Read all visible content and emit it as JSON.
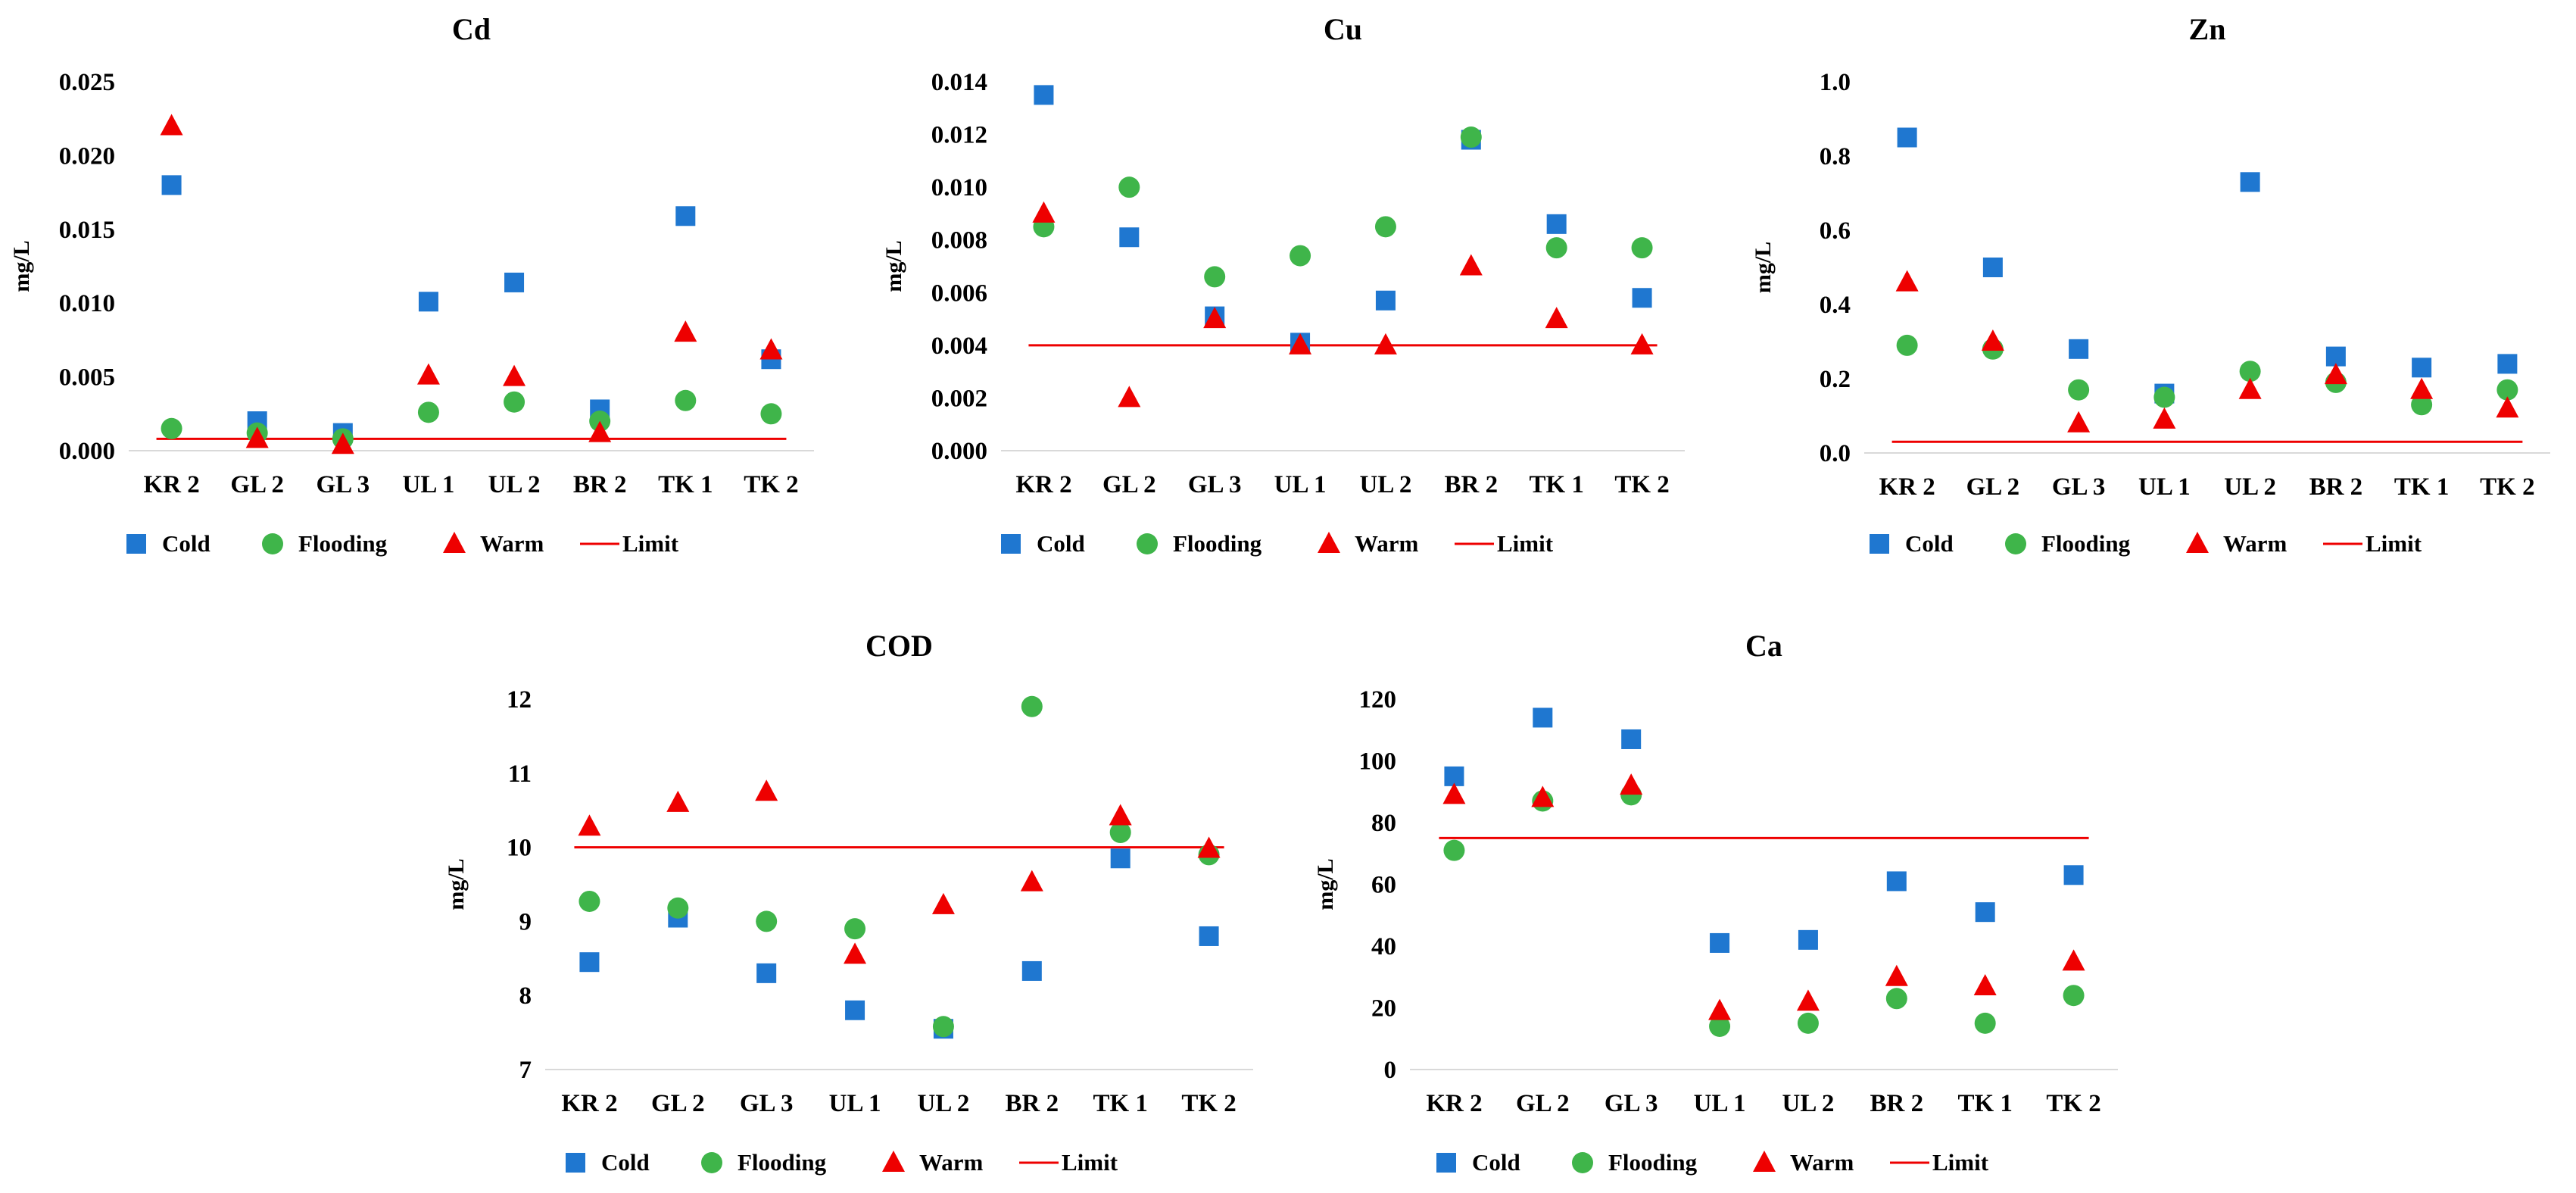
{
  "colors": {
    "cold": "#1f77d0",
    "flooding": "#3fb54a",
    "warm": "#ee0000",
    "limit": "#ee0000"
  },
  "legend": {
    "cold": "Cold",
    "flooding": "Flooding",
    "warm": "Warm",
    "limit": "Limit"
  },
  "chart_data": [
    {
      "type": "scatter",
      "title": "Cd",
      "xlabel": "",
      "ylabel": "mg/L",
      "categories": [
        "KR 2",
        "GL 2",
        "GL 3",
        "UL 1",
        "UL 2",
        "BR 2",
        "TK 1",
        "TK 2"
      ],
      "ylim": [
        0,
        0.025
      ],
      "yticks": [
        "0.000",
        "0.005",
        "0.010",
        "0.015",
        "0.020",
        "0.025"
      ],
      "limit": 0.0008,
      "series": [
        {
          "name": "Cold",
          "values": [
            0.018,
            0.002,
            0.0012,
            0.0101,
            0.0114,
            0.0028,
            0.0159,
            0.0062
          ]
        },
        {
          "name": "Flooding",
          "values": [
            0.0015,
            0.0012,
            0.0008,
            0.0026,
            0.0033,
            0.002,
            0.0034,
            0.0025
          ]
        },
        {
          "name": "Warm",
          "values": [
            0.022,
            0.0008,
            0.0004,
            0.0051,
            0.005,
            0.0012,
            0.008,
            0.0068
          ]
        }
      ],
      "legend_position": "bottom"
    },
    {
      "type": "scatter",
      "title": "Cu",
      "xlabel": "",
      "ylabel": "mg/L",
      "categories": [
        "KR 2",
        "GL 2",
        "GL 3",
        "UL 1",
        "UL 2",
        "BR 2",
        "TK 1",
        "TK 2"
      ],
      "ylim": [
        0,
        0.014
      ],
      "yticks": [
        "0.000",
        "0.002",
        "0.004",
        "0.006",
        "0.008",
        "0.010",
        "0.012",
        "0.014"
      ],
      "limit": 0.004,
      "series": [
        {
          "name": "Cold",
          "values": [
            0.0135,
            0.0081,
            0.0051,
            0.0041,
            0.0057,
            0.0118,
            0.0086,
            0.0058
          ]
        },
        {
          "name": "Flooding",
          "values": [
            0.0085,
            0.01,
            0.0066,
            0.0074,
            0.0085,
            0.0119,
            0.0077,
            0.0077
          ]
        },
        {
          "name": "Warm",
          "values": [
            0.009,
            0.002,
            0.005,
            0.004,
            0.004,
            0.007,
            0.005,
            0.004
          ]
        }
      ],
      "legend_position": "bottom"
    },
    {
      "type": "scatter",
      "title": "Zn",
      "xlabel": "",
      "ylabel": "mg/L",
      "categories": [
        "KR 2",
        "GL 2",
        "GL 3",
        "UL 1",
        "UL 2",
        "BR 2",
        "TK 1",
        "TK 2"
      ],
      "ylim": [
        0,
        1.0
      ],
      "yticks": [
        "0.0",
        "0.2",
        "0.4",
        "0.6",
        "0.8",
        "1.0"
      ],
      "limit": 0.03,
      "series": [
        {
          "name": "Cold",
          "values": [
            0.85,
            0.5,
            0.28,
            0.16,
            0.73,
            0.26,
            0.23,
            0.24
          ]
        },
        {
          "name": "Flooding",
          "values": [
            0.29,
            0.28,
            0.17,
            0.15,
            0.22,
            0.19,
            0.13,
            0.17
          ]
        },
        {
          "name": "Warm",
          "values": [
            0.46,
            0.3,
            0.08,
            0.09,
            0.17,
            0.21,
            0.17,
            0.12
          ]
        }
      ],
      "legend_position": "bottom"
    },
    {
      "type": "scatter",
      "title": "COD",
      "xlabel": "",
      "ylabel": "mg/L",
      "categories": [
        "KR 2",
        "GL 2",
        "GL 3",
        "UL 1",
        "UL 2",
        "BR 2",
        "TK 1",
        "TK 2"
      ],
      "ylim": [
        7,
        12
      ],
      "yticks": [
        "7",
        "8",
        "9",
        "10",
        "11",
        "12"
      ],
      "limit": 10,
      "series": [
        {
          "name": "Cold",
          "values": [
            8.45,
            9.05,
            8.3,
            7.8,
            7.55,
            8.33,
            9.85,
            8.8
          ]
        },
        {
          "name": "Flooding",
          "values": [
            9.27,
            9.18,
            9.0,
            8.9,
            7.58,
            11.9,
            10.2,
            9.9
          ]
        },
        {
          "name": "Warm",
          "values": [
            10.28,
            10.6,
            10.75,
            8.55,
            9.22,
            9.53,
            10.42,
            9.98
          ]
        }
      ],
      "legend_position": "bottom"
    },
    {
      "type": "scatter",
      "title": "Ca",
      "xlabel": "",
      "ylabel": "mg/L",
      "categories": [
        "KR 2",
        "GL 2",
        "GL 3",
        "UL 1",
        "UL 2",
        "BR 2",
        "TK 1",
        "TK 2"
      ],
      "ylim": [
        0,
        120
      ],
      "yticks": [
        "0",
        "20",
        "40",
        "60",
        "80",
        "100",
        "120"
      ],
      "limit": 75,
      "series": [
        {
          "name": "Cold",
          "values": [
            95,
            114,
            107,
            41,
            42,
            61,
            51,
            63
          ]
        },
        {
          "name": "Flooding",
          "values": [
            71,
            87,
            89,
            14,
            15,
            23,
            15,
            24
          ]
        },
        {
          "name": "Warm",
          "values": [
            89,
            88,
            92,
            19,
            22,
            30,
            27,
            35
          ]
        }
      ],
      "legend_position": "bottom"
    }
  ]
}
